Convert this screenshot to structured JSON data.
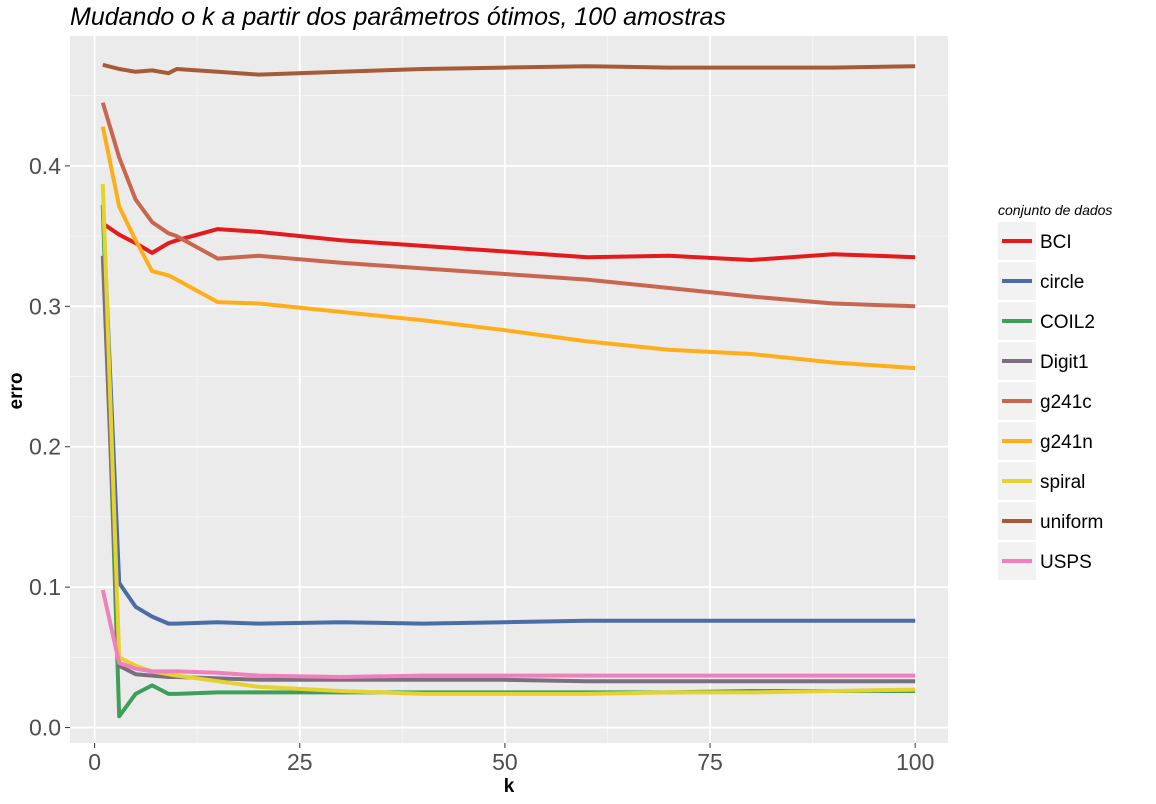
{
  "chart_data": {
    "type": "line",
    "title": "Mudando o k a partir dos parâmetros ótimos, 100 amostras",
    "xlabel": "k",
    "ylabel": "erro",
    "xlim": [
      -3,
      104
    ],
    "ylim": [
      -0.011,
      0.4925
    ],
    "xticks": [
      0,
      25,
      50,
      75,
      100
    ],
    "xtick_labels": [
      "0",
      "25",
      "50",
      "75",
      "100"
    ],
    "yticks": [
      0.0,
      0.1,
      0.2,
      0.3,
      0.4
    ],
    "ytick_labels": [
      "0.0",
      "0.1",
      "0.2",
      "0.3",
      "0.4"
    ],
    "grid": true,
    "legend": {
      "title": "conjunto de dados",
      "position": "right"
    },
    "x": [
      1,
      3,
      5,
      7,
      9,
      10,
      15,
      20,
      30,
      40,
      50,
      60,
      70,
      80,
      90,
      100
    ],
    "series": [
      {
        "name": "BCI",
        "color": "#e41a1c",
        "values": [
          0.359,
          0.351,
          0.345,
          0.338,
          0.345,
          0.347,
          0.355,
          0.353,
          0.347,
          0.343,
          0.339,
          0.335,
          0.336,
          0.333,
          0.337,
          0.335
        ]
      },
      {
        "name": "circle",
        "color": "#4a6da8",
        "values": [
          0.372,
          0.103,
          0.086,
          0.079,
          0.074,
          0.074,
          0.075,
          0.074,
          0.075,
          0.074,
          0.075,
          0.076,
          0.076,
          0.076,
          0.076,
          0.076
        ]
      },
      {
        "name": "COIL2",
        "color": "#3f9e58",
        "values": [
          0.372,
          0.008,
          0.024,
          0.03,
          0.024,
          0.024,
          0.025,
          0.025,
          0.025,
          0.025,
          0.025,
          0.025,
          0.025,
          0.026,
          0.026,
          0.026
        ]
      },
      {
        "name": "Digit1",
        "color": "#7a6e80",
        "values": [
          0.336,
          0.044,
          0.038,
          0.037,
          0.036,
          0.036,
          0.035,
          0.034,
          0.034,
          0.034,
          0.034,
          0.033,
          0.033,
          0.033,
          0.033,
          0.033
        ]
      },
      {
        "name": "g241c",
        "color": "#c8664f",
        "values": [
          0.445,
          0.406,
          0.376,
          0.36,
          0.352,
          0.35,
          0.334,
          0.336,
          0.331,
          0.327,
          0.323,
          0.319,
          0.313,
          0.307,
          0.302,
          0.3
        ]
      },
      {
        "name": "g241n",
        "color": "#ffae1a",
        "values": [
          0.428,
          0.371,
          0.347,
          0.325,
          0.322,
          0.319,
          0.303,
          0.302,
          0.296,
          0.29,
          0.283,
          0.275,
          0.269,
          0.266,
          0.26,
          0.256
        ]
      },
      {
        "name": "spiral",
        "color": "#e6d22f",
        "values": [
          0.387,
          0.05,
          0.044,
          0.04,
          0.038,
          0.037,
          0.033,
          0.029,
          0.026,
          0.024,
          0.024,
          0.024,
          0.025,
          0.025,
          0.026,
          0.027
        ]
      },
      {
        "name": "uniform",
        "color": "#a65a35",
        "values": [
          0.472,
          0.469,
          0.467,
          0.468,
          0.466,
          0.469,
          0.467,
          0.465,
          0.467,
          0.469,
          0.47,
          0.471,
          0.47,
          0.47,
          0.47,
          0.471
        ]
      },
      {
        "name": "USPS",
        "color": "#f07fbc",
        "values": [
          0.098,
          0.046,
          0.042,
          0.04,
          0.04,
          0.04,
          0.039,
          0.037,
          0.036,
          0.037,
          0.037,
          0.037,
          0.037,
          0.037,
          0.037,
          0.037
        ]
      }
    ]
  }
}
